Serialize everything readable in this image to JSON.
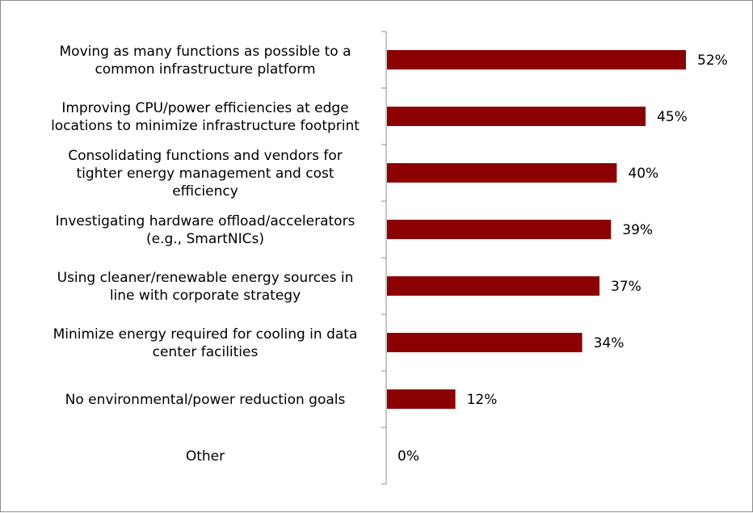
{
  "chart_data": {
    "type": "bar",
    "orientation": "horizontal",
    "categories": [
      [
        "Moving as many functions as possible to a",
        "common infrastructure platform"
      ],
      [
        "Improving CPU/power efficiencies at edge",
        "locations to minimize infrastructure footprint"
      ],
      [
        "Consolidating functions and vendors for",
        "tighter energy management and cost",
        "efficiency"
      ],
      [
        "Investigating hardware offload/accelerators",
        "(e.g., SmartNICs)"
      ],
      [
        "Using cleaner/renewable energy sources in",
        "line with corporate strategy"
      ],
      [
        "Minimize energy required for cooling in data",
        "center facilities"
      ],
      [
        "No environmental/power reduction goals"
      ],
      [
        "Other"
      ]
    ],
    "values": [
      52,
      45,
      40,
      39,
      37,
      34,
      12,
      0
    ],
    "value_labels": [
      "52%",
      "45%",
      "40%",
      "39%",
      "37%",
      "34%",
      "12%",
      "0%"
    ],
    "unit": "%",
    "xlim": [
      0,
      60
    ],
    "bar_color": "#8b0000",
    "axis_color": "#8c8c8c",
    "grid": false,
    "legend": "none",
    "title": "",
    "xlabel": "",
    "ylabel": ""
  }
}
